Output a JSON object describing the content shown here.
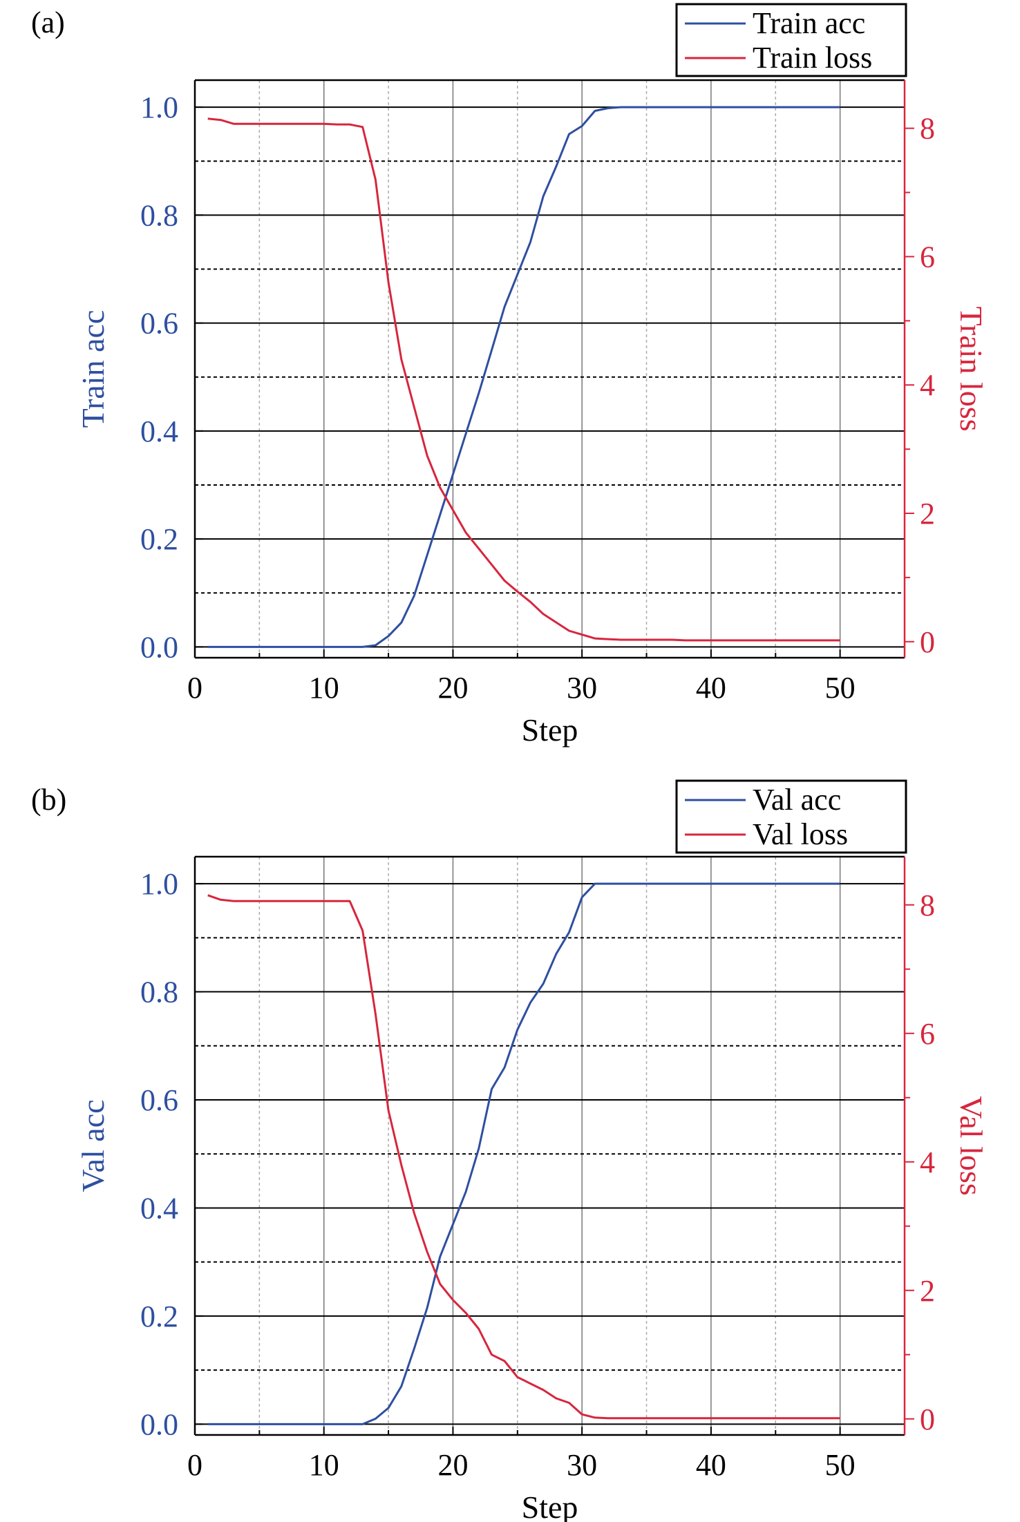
{
  "colors": {
    "acc": "#2E4FA0",
    "loss": "#D7263D",
    "axis": "#000000",
    "grid_major": "#000000",
    "grid_minor": "#000000",
    "grid_vertical_major": "#777777",
    "grid_vertical_minor": "#aaaaaa"
  },
  "chart_data": [
    {
      "panel_label": "(a)",
      "type": "line",
      "xlabel": "Step",
      "ylabel_left": "Train acc",
      "ylabel_right": "Train loss",
      "xlim": [
        0,
        55
      ],
      "ylim_left": [
        -0.02,
        1.05
      ],
      "ylim_right": [
        -0.25,
        8.75
      ],
      "xticks": [
        0,
        10,
        20,
        30,
        40,
        50
      ],
      "yticks_left": [
        0.0,
        0.2,
        0.4,
        0.6,
        0.8,
        1.0
      ],
      "yticks_left_labels": [
        "0.0",
        "0.2",
        "0.4",
        "0.6",
        "0.8",
        "1.0"
      ],
      "yticks_right": [
        0,
        2,
        4,
        6,
        8
      ],
      "yticks_right_labels": [
        "0",
        "2",
        "4",
        "6",
        "8"
      ],
      "grid": true,
      "legend_position": "top-right",
      "series": [
        {
          "name": "Train acc",
          "axis": "left",
          "x": [
            1,
            2,
            3,
            4,
            5,
            6,
            7,
            8,
            9,
            10,
            11,
            12,
            13,
            14,
            15,
            16,
            17,
            18,
            19,
            20,
            21,
            22,
            23,
            24,
            25,
            26,
            27,
            28,
            29,
            30,
            31,
            32,
            33,
            34,
            35,
            36,
            37,
            38,
            39,
            40,
            41,
            42,
            43,
            44,
            45,
            46,
            47,
            48,
            49,
            50
          ],
          "values": [
            0,
            0,
            0,
            0,
            0,
            0,
            0,
            0,
            0,
            0,
            0,
            0,
            0,
            0.003,
            0.02,
            0.045,
            0.095,
            0.17,
            0.245,
            0.32,
            0.395,
            0.47,
            0.55,
            0.63,
            0.69,
            0.75,
            0.835,
            0.89,
            0.95,
            0.965,
            0.993,
            0.998,
            1,
            1,
            1,
            1,
            1,
            1,
            1,
            1,
            1,
            1,
            1,
            1,
            1,
            1,
            1,
            1,
            1,
            1
          ]
        },
        {
          "name": "Train loss",
          "axis": "right",
          "x": [
            1,
            2,
            3,
            4,
            5,
            6,
            7,
            8,
            9,
            10,
            11,
            12,
            13,
            14,
            15,
            16,
            17,
            18,
            19,
            20,
            21,
            22,
            23,
            24,
            25,
            26,
            27,
            28,
            29,
            30,
            31,
            32,
            33,
            34,
            35,
            36,
            37,
            38,
            39,
            40,
            41,
            42,
            43,
            44,
            45,
            46,
            47,
            48,
            49,
            50
          ],
          "values": [
            8.15,
            8.13,
            8.07,
            8.07,
            8.07,
            8.07,
            8.07,
            8.07,
            8.07,
            8.07,
            8.06,
            8.06,
            8.02,
            7.2,
            5.6,
            4.4,
            3.65,
            2.9,
            2.4,
            2.05,
            1.7,
            1.45,
            1.2,
            0.95,
            0.78,
            0.62,
            0.43,
            0.3,
            0.17,
            0.11,
            0.05,
            0.04,
            0.03,
            0.03,
            0.03,
            0.03,
            0.03,
            0.02,
            0.02,
            0.02,
            0.02,
            0.02,
            0.02,
            0.02,
            0.02,
            0.02,
            0.02,
            0.02,
            0.02,
            0.02
          ]
        }
      ]
    },
    {
      "panel_label": "(b)",
      "type": "line",
      "xlabel": "Step",
      "ylabel_left": "Val acc",
      "ylabel_right": "Val loss",
      "xlim": [
        0,
        55
      ],
      "ylim_left": [
        -0.02,
        1.05
      ],
      "ylim_right": [
        -0.25,
        8.75
      ],
      "xticks": [
        0,
        10,
        20,
        30,
        40,
        50
      ],
      "yticks_left": [
        0.0,
        0.2,
        0.4,
        0.6,
        0.8,
        1.0
      ],
      "yticks_left_labels": [
        "0.0",
        "0.2",
        "0.4",
        "0.6",
        "0.8",
        "1.0"
      ],
      "yticks_right": [
        0,
        2,
        4,
        6,
        8
      ],
      "yticks_right_labels": [
        "0",
        "2",
        "4",
        "6",
        "8"
      ],
      "grid": true,
      "legend_position": "top-right",
      "series": [
        {
          "name": "Val acc",
          "axis": "left",
          "x": [
            1,
            2,
            3,
            4,
            5,
            6,
            7,
            8,
            9,
            10,
            11,
            12,
            13,
            14,
            15,
            16,
            17,
            18,
            19,
            20,
            21,
            22,
            23,
            24,
            25,
            26,
            27,
            28,
            29,
            30,
            31,
            32,
            33,
            34,
            35,
            36,
            37,
            38,
            39,
            40,
            41,
            42,
            43,
            44,
            45,
            46,
            47,
            48,
            49,
            50
          ],
          "values": [
            0,
            0,
            0,
            0,
            0,
            0,
            0,
            0,
            0,
            0,
            0,
            0,
            0,
            0.01,
            0.03,
            0.07,
            0.14,
            0.215,
            0.31,
            0.37,
            0.43,
            0.51,
            0.62,
            0.66,
            0.73,
            0.78,
            0.815,
            0.87,
            0.91,
            0.975,
            1,
            1,
            1,
            1,
            1,
            1,
            1,
            1,
            1,
            1,
            1,
            1,
            1,
            1,
            1,
            1,
            1,
            1,
            1,
            1
          ]
        },
        {
          "name": "Val loss",
          "axis": "right",
          "x": [
            1,
            2,
            3,
            4,
            5,
            6,
            7,
            8,
            9,
            10,
            11,
            12,
            13,
            14,
            15,
            16,
            17,
            18,
            19,
            20,
            21,
            22,
            23,
            24,
            25,
            26,
            27,
            28,
            29,
            30,
            31,
            32,
            33,
            34,
            35,
            36,
            37,
            38,
            39,
            40,
            41,
            42,
            43,
            44,
            45,
            46,
            47,
            48,
            49,
            50
          ],
          "values": [
            8.15,
            8.08,
            8.06,
            8.06,
            8.06,
            8.06,
            8.06,
            8.06,
            8.06,
            8.06,
            8.06,
            8.06,
            7.6,
            6.3,
            4.8,
            3.95,
            3.2,
            2.6,
            2.1,
            1.85,
            1.65,
            1.4,
            1.0,
            0.9,
            0.65,
            0.55,
            0.45,
            0.32,
            0.25,
            0.07,
            0.02,
            0.01,
            0.01,
            0.01,
            0.01,
            0.01,
            0.01,
            0.01,
            0.01,
            0.01,
            0.01,
            0.01,
            0.01,
            0.01,
            0.01,
            0.01,
            0.01,
            0.01,
            0.01,
            0.01
          ]
        }
      ]
    }
  ]
}
